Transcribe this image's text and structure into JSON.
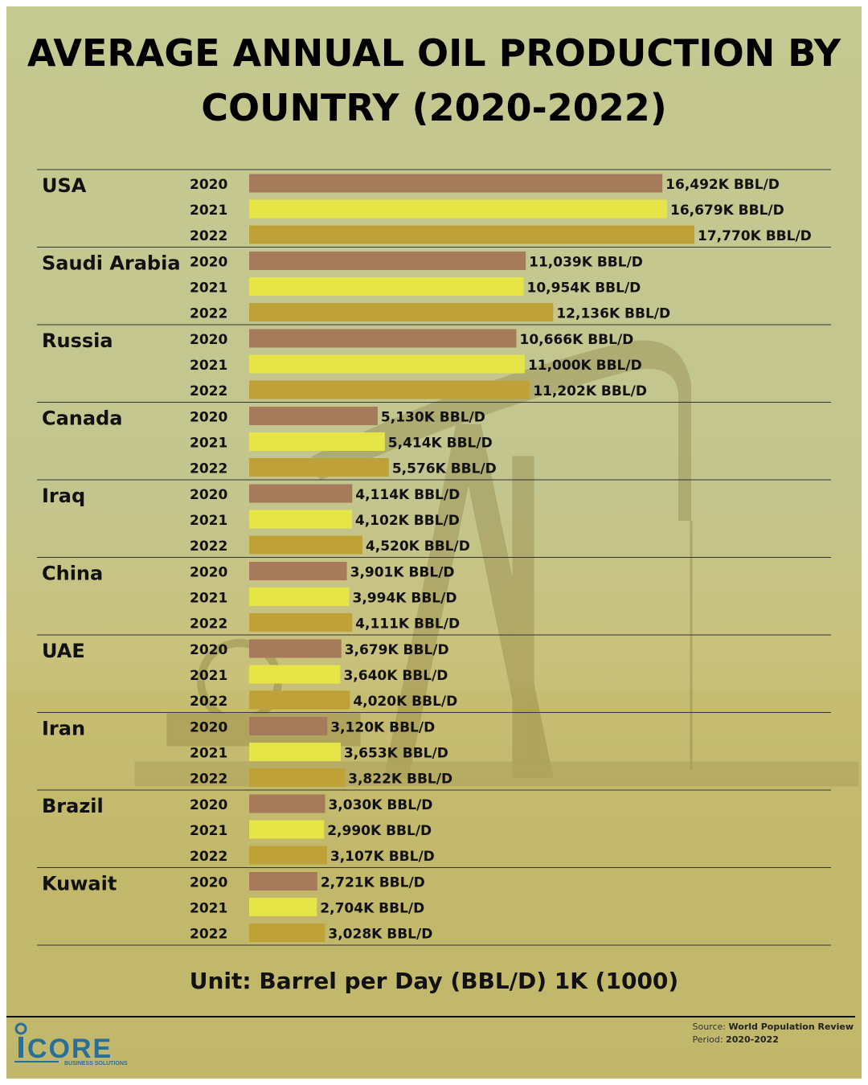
{
  "title_lines": [
    "AVERAGE ANNUAL OIL PRODUCTION BY",
    "COUNTRY (2020-2022)"
  ],
  "unit_note": "Unit: Barrel per Day (BBL/D) 1K (1000)",
  "footer": {
    "source_label": "Source:",
    "source_value": "World Population Review",
    "period_label": "Period:",
    "period_value": "2020-2022"
  },
  "logo": {
    "name": "iCORE",
    "tagline": "BUSINESS SOLUTIONS"
  },
  "colors": {
    "2020": "#a67b5b",
    "2021": "#e6e548",
    "2022": "#bea238",
    "logo_blue": "#2a6f97"
  },
  "chart_data": {
    "type": "bar",
    "orientation": "horizontal",
    "title": "AVERAGE ANNUAL OIL PRODUCTION BY COUNTRY (2020-2022)",
    "unit": "K BBL/D",
    "value_suffix": "K BBL/D",
    "categories": [
      "USA",
      "Saudi Arabia",
      "Russia",
      "Canada",
      "Iraq",
      "China",
      "UAE",
      "Iran",
      "Brazil",
      "Kuwait"
    ],
    "series": [
      {
        "name": "2020",
        "values": [
          16492,
          11039,
          10666,
          5130,
          4114,
          3901,
          3679,
          3120,
          3030,
          2721
        ]
      },
      {
        "name": "2021",
        "values": [
          16679,
          10954,
          11000,
          5414,
          4102,
          3994,
          3640,
          3653,
          2990,
          2704
        ]
      },
      {
        "name": "2022",
        "values": [
          17770,
          12136,
          11202,
          5576,
          4520,
          4111,
          4020,
          3822,
          3107,
          3028
        ]
      }
    ],
    "xlim": [
      0,
      17770
    ],
    "grid": false,
    "legend": "none"
  }
}
